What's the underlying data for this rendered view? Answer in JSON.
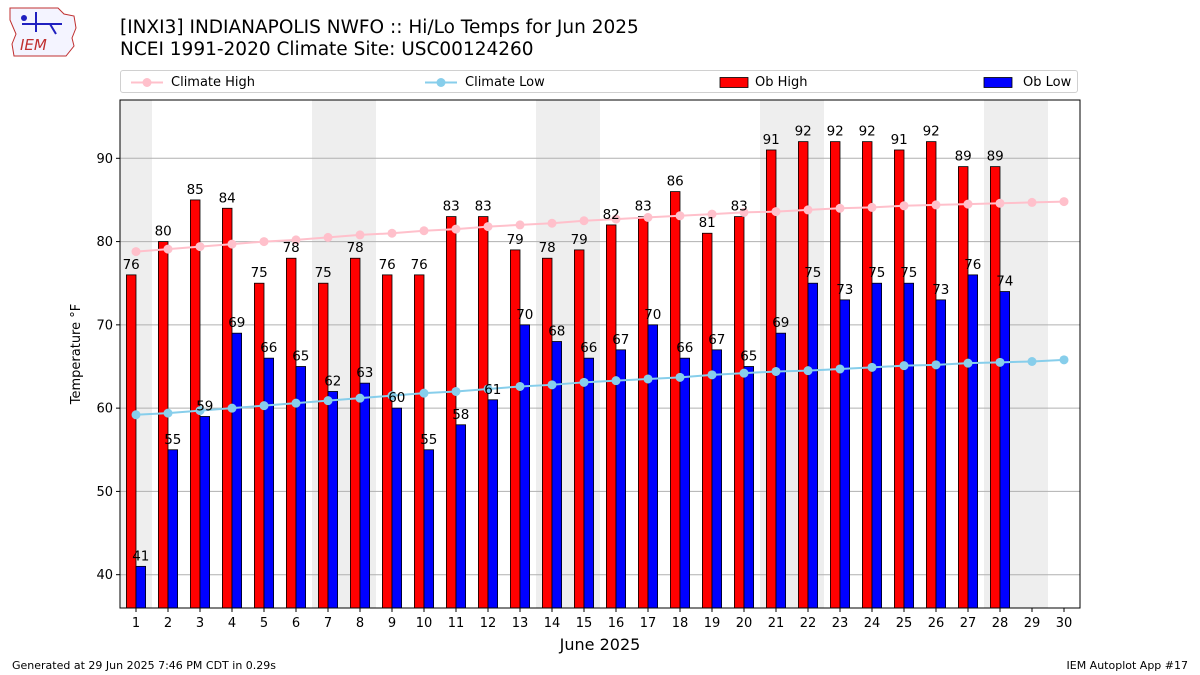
{
  "header": {
    "title_line1": "[INXI3] INDIANAPOLIS NWFO :: Hi/Lo Temps for Jun 2025",
    "title_line2": "NCEI 1991-2020 Climate Site: USC00124260",
    "logo_text": "IEM"
  },
  "legend": {
    "placement": "top",
    "items": [
      {
        "label": "Climate High",
        "kind": "line",
        "color": "#ffc0cb"
      },
      {
        "label": "Climate Low",
        "kind": "line",
        "color": "#87ceeb"
      },
      {
        "label": "Ob High",
        "kind": "bar",
        "color": "#ff0000"
      },
      {
        "label": "Ob Low",
        "kind": "bar",
        "color": "#0000ff"
      }
    ]
  },
  "chart_data": {
    "type": "bar",
    "xlabel": "June 2025",
    "ylabel": "Temperature °F",
    "ylim": [
      36,
      97
    ],
    "xlim": [
      0.5,
      30.5
    ],
    "yticks": [
      40,
      50,
      60,
      70,
      80,
      90
    ],
    "grid": true,
    "days": [
      1,
      2,
      3,
      4,
      5,
      6,
      7,
      8,
      9,
      10,
      11,
      12,
      13,
      14,
      15,
      16,
      17,
      18,
      19,
      20,
      21,
      22,
      23,
      24,
      25,
      26,
      27,
      28,
      29,
      30
    ],
    "weekend_days": [
      1,
      7,
      8,
      14,
      15,
      21,
      22,
      28,
      29
    ],
    "series": [
      {
        "name": "Ob High",
        "kind": "bar",
        "color": "#ff0000",
        "values": [
          76,
          80,
          85,
          84,
          75,
          78,
          75,
          78,
          76,
          76,
          83,
          83,
          79,
          78,
          79,
          82,
          83,
          86,
          81,
          83,
          91,
          92,
          92,
          92,
          91,
          92,
          89,
          89,
          null,
          null
        ]
      },
      {
        "name": "Ob Low",
        "kind": "bar",
        "color": "#0000ff",
        "values": [
          41,
          55,
          59,
          69,
          66,
          65,
          62,
          63,
          60,
          55,
          58,
          61,
          70,
          68,
          66,
          67,
          70,
          66,
          67,
          65,
          69,
          75,
          73,
          75,
          75,
          73,
          76,
          74,
          null,
          null
        ]
      },
      {
        "name": "Climate High",
        "kind": "line",
        "color": "#ffc0cb",
        "values": [
          78.8,
          79.1,
          79.4,
          79.7,
          80.0,
          80.2,
          80.5,
          80.8,
          81.0,
          81.3,
          81.5,
          81.8,
          82.0,
          82.2,
          82.5,
          82.7,
          82.9,
          83.1,
          83.3,
          83.5,
          83.6,
          83.8,
          84.0,
          84.1,
          84.3,
          84.4,
          84.5,
          84.6,
          84.7,
          84.8
        ]
      },
      {
        "name": "Climate Low",
        "kind": "line",
        "color": "#87ceeb",
        "values": [
          59.2,
          59.4,
          59.7,
          60.0,
          60.3,
          60.6,
          60.9,
          61.2,
          61.5,
          61.8,
          62.0,
          62.3,
          62.6,
          62.8,
          63.1,
          63.3,
          63.5,
          63.7,
          64.0,
          64.2,
          64.4,
          64.5,
          64.7,
          64.9,
          65.1,
          65.2,
          65.4,
          65.5,
          65.6,
          65.8
        ]
      }
    ]
  },
  "footer": {
    "left": "Generated at 29 Jun 2025 7:46 PM CDT in 0.29s",
    "right": "IEM Autoplot App #17"
  }
}
